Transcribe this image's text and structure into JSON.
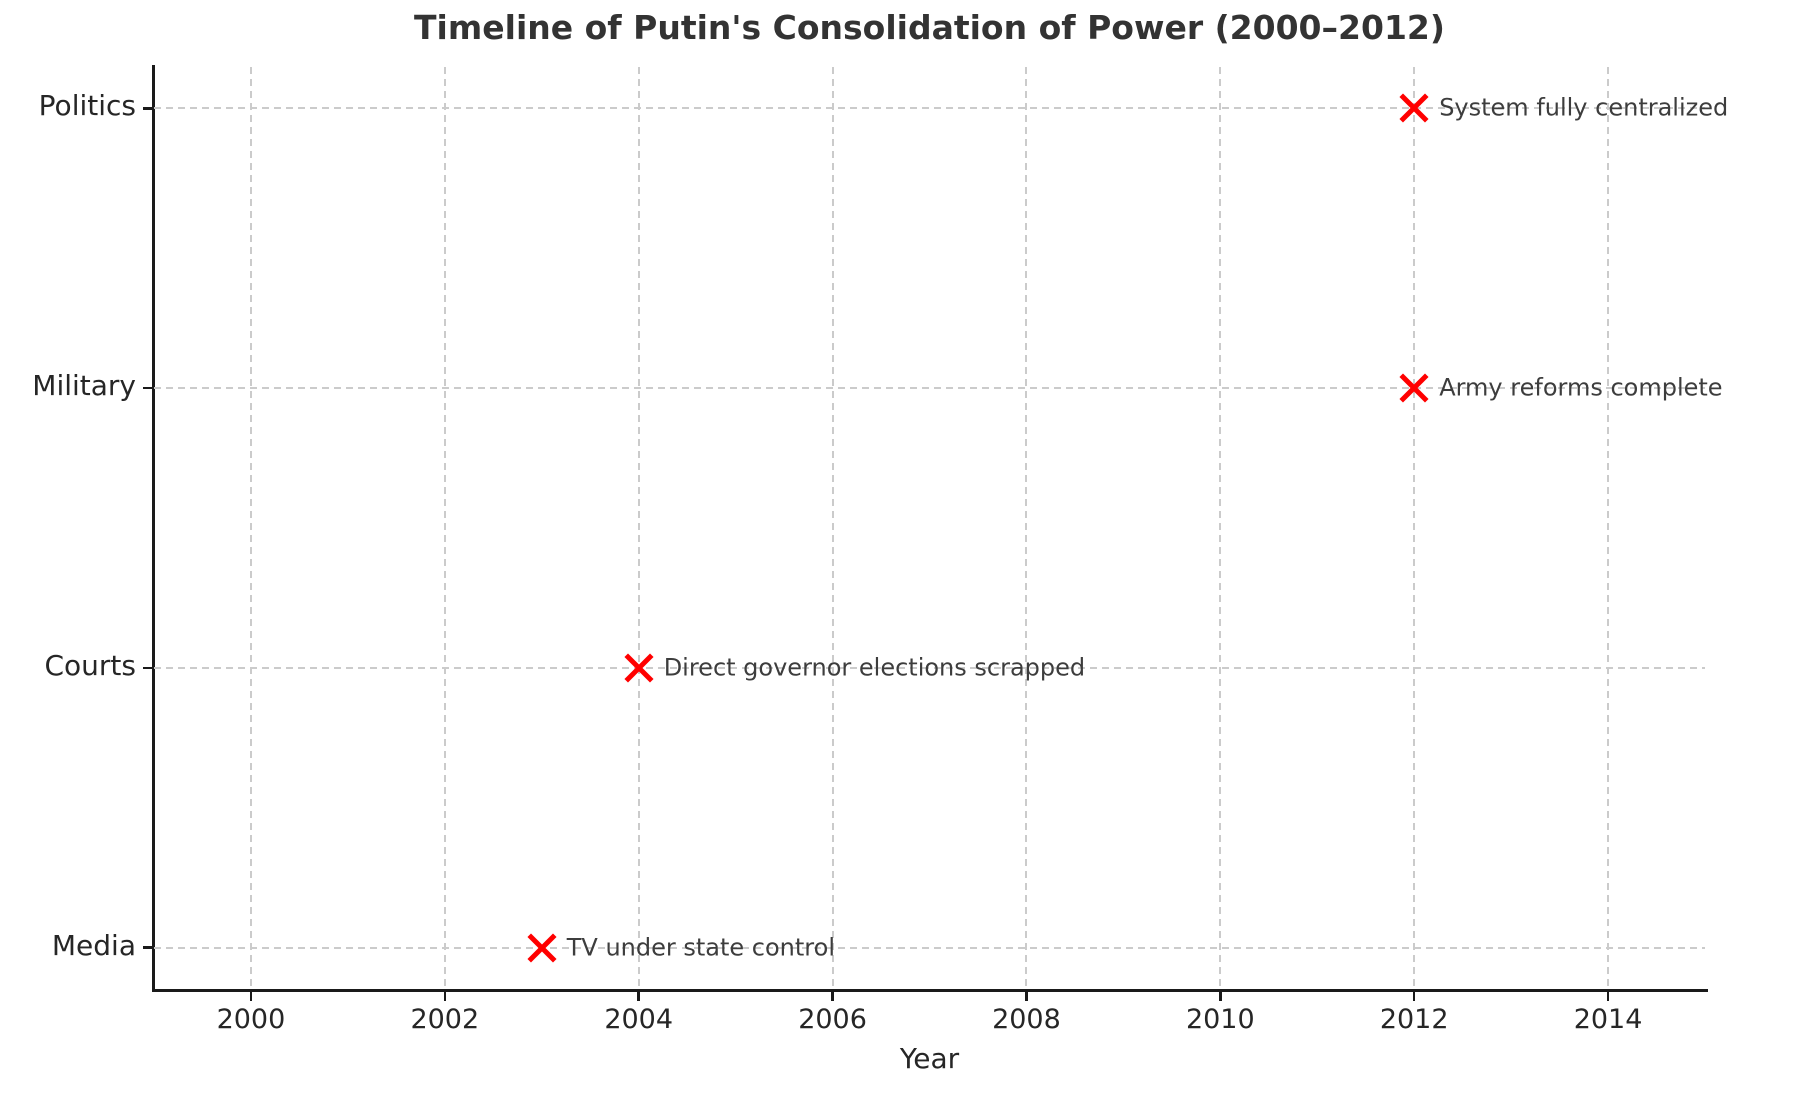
{
  "chart_data": {
    "type": "scatter",
    "title": "Timeline of Putin's Consolidation of Power (2000–2012)",
    "xlabel": "Year",
    "ylabel": "",
    "xlim": [
      1999,
      2015
    ],
    "x_ticks": [
      2000,
      2002,
      2004,
      2006,
      2008,
      2010,
      2012,
      2014
    ],
    "categories": [
      "Politics",
      "Military",
      "Courts",
      "Media"
    ],
    "grid": "both, dashed",
    "legend": false,
    "marker": {
      "shape": "x",
      "color": "#ff0000",
      "size": 34
    },
    "colors": {
      "background": "#ffffff",
      "grid": "#cbcbcb",
      "axis": "#1a1a1a",
      "title_text": "#333333",
      "tick_text": "#262626",
      "annotation_text": "#3d3d3d"
    },
    "points": [
      {
        "category": "Politics",
        "x": 2012,
        "annotation": "System fully centralized"
      },
      {
        "category": "Military",
        "x": 2012,
        "annotation": "Army reforms complete"
      },
      {
        "category": "Courts",
        "x": 2004,
        "annotation": "Direct governor elections scrapped"
      },
      {
        "category": "Media",
        "x": 2003,
        "annotation": "TV under state control"
      }
    ]
  }
}
